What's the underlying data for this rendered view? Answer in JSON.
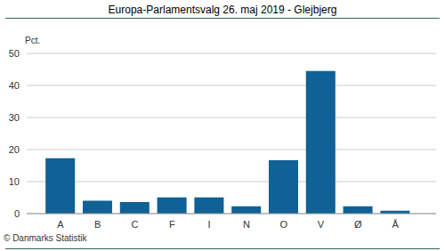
{
  "chart_data": {
    "type": "bar",
    "title": "Europa-Parlamentsvalg 26. maj 2019 - Glejbjerg",
    "ylabel": "Pct.",
    "source": "© Danmarks Statistik",
    "categories": [
      "A",
      "B",
      "C",
      "F",
      "I",
      "N",
      "O",
      "V",
      "Ø",
      "Å"
    ],
    "values": [
      17.3,
      4.0,
      3.6,
      5.1,
      5.1,
      2.3,
      16.7,
      44.5,
      2.3,
      0.9
    ],
    "color": "#0f6196",
    "ylim": [
      0,
      50
    ],
    "yticks": [
      0,
      10,
      20,
      30,
      40,
      50
    ],
    "grid": true
  }
}
